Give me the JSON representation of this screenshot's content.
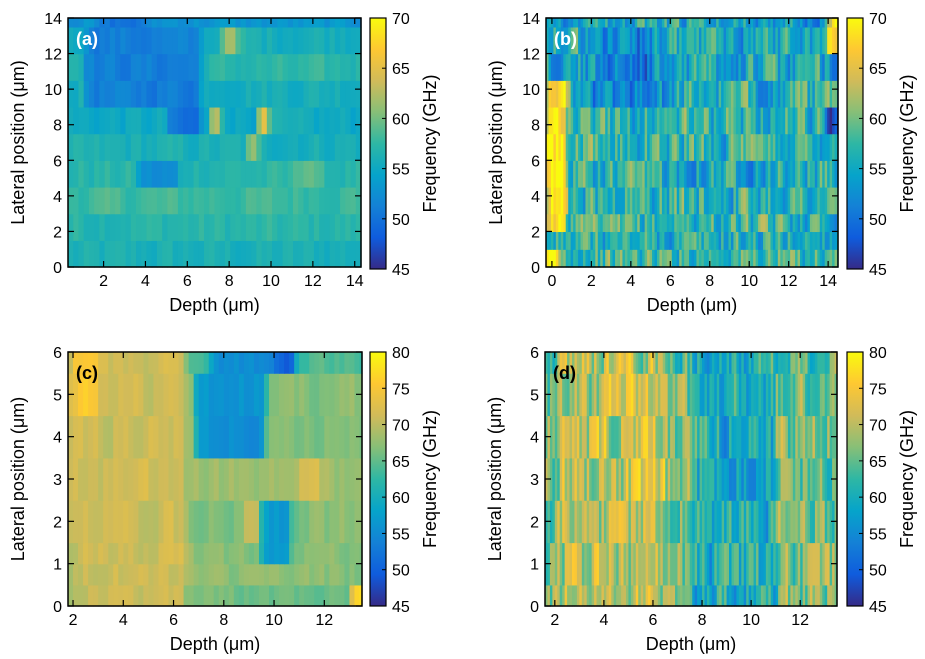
{
  "colorscale": [
    "#352a87",
    "#0f5cdd",
    "#1481d6",
    "#06a4ca",
    "#2eb7a4",
    "#87bf77",
    "#d1bb59",
    "#fec832",
    "#f9fb0e"
  ],
  "chart_data": [
    {
      "type": "heatmap",
      "panel": "(a)",
      "xlabel": "Depth (μm)",
      "ylabel": "Lateral position (μm)",
      "colorbar_label": "Frequency (GHz)",
      "xlim": [
        0.3,
        14.3
      ],
      "ylim": [
        0,
        14
      ],
      "xticks": [
        2,
        4,
        6,
        8,
        10,
        12,
        14
      ],
      "yticks": [
        0,
        2,
        4,
        6,
        8,
        10,
        12,
        14
      ],
      "clim": [
        45,
        70
      ],
      "cticks": [
        45,
        50,
        55,
        60,
        65,
        70
      ],
      "rows_y": [
        0,
        1.5,
        3,
        4.5,
        6,
        7.5,
        9,
        10.5,
        12,
        13.5
      ],
      "x_step": 0.25,
      "base": [
        56,
        57,
        58,
        57,
        56,
        55,
        56,
        57,
        56,
        53
      ],
      "features": [
        {
          "x": [
            1.0,
            6.5
          ],
          "y": [
            9,
            13.5
          ],
          "v": 51
        },
        {
          "x": [
            5.0,
            6.5
          ],
          "y": [
            7.5,
            9
          ],
          "v": 49
        },
        {
          "x": [
            3.5,
            5.5
          ],
          "y": [
            4.5,
            6
          ],
          "v": 52
        },
        {
          "x": [
            7.0,
            7.6
          ],
          "y": [
            7.5,
            9
          ],
          "v": 64
        },
        {
          "x": [
            9.3,
            9.8
          ],
          "y": [
            7.5,
            9
          ],
          "v": 66
        },
        {
          "x": [
            7.6,
            8.2
          ],
          "y": [
            12,
            13.5
          ],
          "v": 62
        },
        {
          "x": [
            8.7,
            9.2
          ],
          "y": [
            6,
            7.5
          ],
          "v": 61
        },
        {
          "x": [
            1.5,
            4.0
          ],
          "y": [
            13.5,
            14
          ],
          "v": 50
        },
        {
          "x": [
            11.0,
            12.0
          ],
          "y": [
            4.5,
            6
          ],
          "v": 60
        }
      ],
      "noise": 1.5
    },
    {
      "type": "heatmap",
      "panel": "(b)",
      "xlabel": "Depth (μm)",
      "ylabel": "Lateral position (μm)",
      "colorbar_label": "Frequency (GHz)",
      "xlim": [
        -0.3,
        14.5
      ],
      "ylim": [
        0,
        14
      ],
      "xticks": [
        0,
        2,
        4,
        6,
        8,
        10,
        12,
        14
      ],
      "yticks": [
        0,
        2,
        4,
        6,
        8,
        10,
        12,
        14
      ],
      "clim": [
        45,
        70
      ],
      "cticks": [
        45,
        50,
        55,
        60,
        65,
        70
      ],
      "rows_y": [
        0,
        1,
        2,
        3,
        4.5,
        6,
        7.5,
        9,
        10.5,
        12,
        13.5
      ],
      "x_step": 0.125,
      "base": [
        58,
        56,
        57,
        57,
        56,
        57,
        57,
        56,
        55,
        56,
        55
      ],
      "features": [
        {
          "x": [
            -0.3,
            0.7
          ],
          "y": [
            2,
            11
          ],
          "v": 70
        },
        {
          "x": [
            -0.3,
            0.3
          ],
          "y": [
            0,
            1
          ],
          "v": 68
        },
        {
          "x": [
            1.5,
            6.0
          ],
          "y": [
            9,
            13.5
          ],
          "v": 52
        },
        {
          "x": [
            13.8,
            14.5
          ],
          "y": [
            7.5,
            9
          ],
          "v": 47
        },
        {
          "x": [
            14.0,
            14.5
          ],
          "y": [
            12,
            14
          ],
          "v": 68
        }
      ],
      "noise": 7
    },
    {
      "type": "heatmap",
      "panel": "(c)",
      "xlabel": "Depth (μm)",
      "ylabel": "Lateral position (μm)",
      "colorbar_label": "Frequency (GHz)",
      "xlim": [
        1.8,
        13.5
      ],
      "ylim": [
        0,
        6
      ],
      "xticks": [
        2,
        4,
        6,
        8,
        10,
        12
      ],
      "yticks": [
        0,
        1,
        2,
        3,
        4,
        5,
        6
      ],
      "clim": [
        45,
        80
      ],
      "cticks": [
        45,
        50,
        55,
        60,
        65,
        70,
        75,
        80
      ],
      "rows_y": [
        0,
        0.5,
        1.0,
        1.5,
        2.5,
        3.5,
        4.5,
        5.5
      ],
      "x_step": 0.2,
      "base": [
        66,
        67,
        67,
        67,
        68,
        67,
        67,
        64
      ],
      "features": [
        {
          "x": [
            1.8,
            6.5
          ],
          "y": [
            0,
            6
          ],
          "v": 71
        },
        {
          "x": [
            1.8,
            3.0
          ],
          "y": [
            4.5,
            6
          ],
          "v": 76
        },
        {
          "x": [
            6.8,
            9.5
          ],
          "y": [
            3.5,
            5.5
          ],
          "v": 56
        },
        {
          "x": [
            9.5,
            10.5
          ],
          "y": [
            1,
            2.5
          ],
          "v": 57
        },
        {
          "x": [
            7.5,
            10.5
          ],
          "y": [
            5.5,
            6
          ],
          "v": 55
        },
        {
          "x": [
            10.0,
            10.8
          ],
          "y": [
            5.5,
            6
          ],
          "v": 50
        },
        {
          "x": [
            8.8,
            9.3
          ],
          "y": [
            1.5,
            2.5
          ],
          "v": 72
        },
        {
          "x": [
            11.0,
            11.8
          ],
          "y": [
            2.5,
            3.5
          ],
          "v": 72
        },
        {
          "x": [
            13.0,
            13.5
          ],
          "y": [
            0,
            0.5
          ],
          "v": 77
        }
      ],
      "noise": 2
    },
    {
      "type": "heatmap",
      "panel": "(d)",
      "xlabel": "Depth (μm)",
      "ylabel": "Lateral position (μm)",
      "colorbar_label": "Frequency (GHz)",
      "xlim": [
        1.6,
        13.5
      ],
      "ylim": [
        0,
        6
      ],
      "xticks": [
        2,
        4,
        6,
        8,
        10,
        12
      ],
      "yticks": [
        0,
        1,
        2,
        3,
        4,
        5,
        6
      ],
      "clim": [
        45,
        80
      ],
      "cticks": [
        45,
        50,
        55,
        60,
        65,
        70,
        75,
        80
      ],
      "rows_y": [
        0,
        0.5,
        1.5,
        2.5,
        3.5,
        4.5,
        5.5
      ],
      "x_step": 0.1,
      "base": [
        67,
        66,
        66,
        66,
        66,
        65,
        64
      ],
      "features": [
        {
          "x": [
            7.5,
            11.0
          ],
          "y": [
            0,
            6
          ],
          "v": 60
        },
        {
          "x": [
            2.0,
            6.5
          ],
          "y": [
            0,
            6
          ],
          "v": 70
        }
      ],
      "noise": 9
    }
  ]
}
